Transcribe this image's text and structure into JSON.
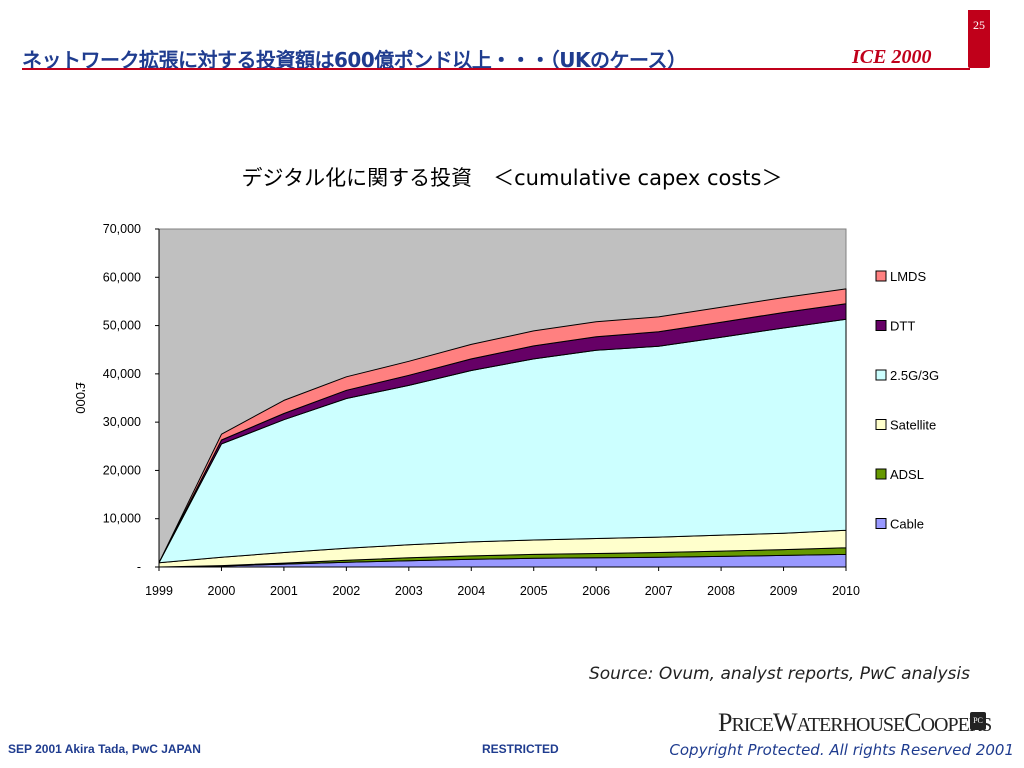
{
  "header": {
    "title": "ネットワーク拡張に対する投資額は600億ポンド以上・・・（UKのケース）",
    "brand": "ICE 2000",
    "page_number": "25"
  },
  "chart_data": {
    "type": "area",
    "stacked": true,
    "title": "デジタル化に関する投資　＜cumulative capex costs＞",
    "xlabel": "",
    "ylabel": "£'000",
    "ylim": [
      0,
      70000
    ],
    "yticks": [
      0,
      10000,
      20000,
      30000,
      40000,
      50000,
      60000,
      70000
    ],
    "ytick_labels": [
      "-",
      "10,000",
      "20,000",
      "30,000",
      "40,000",
      "50,000",
      "60,000",
      "70,000"
    ],
    "categories": [
      "1999",
      "2000",
      "2001",
      "2002",
      "2003",
      "2004",
      "2005",
      "2006",
      "2007",
      "2008",
      "2009",
      "2010"
    ],
    "legend_position": "right",
    "plot_background": "#c0c0c0",
    "series": [
      {
        "name": "Cable",
        "color": "#9999ff",
        "values": [
          0,
          200,
          600,
          1000,
          1300,
          1600,
          1800,
          1900,
          2000,
          2200,
          2400,
          2600
        ]
      },
      {
        "name": "ADSL",
        "color": "#669900",
        "values": [
          0,
          100,
          200,
          400,
          600,
          700,
          800,
          900,
          1000,
          1100,
          1200,
          1400
        ]
      },
      {
        "name": "Satellite",
        "color": "#ffffcc",
        "values": [
          900,
          1700,
          2200,
          2500,
          2700,
          2900,
          3000,
          3100,
          3200,
          3300,
          3400,
          3600
        ]
      },
      {
        "name": "2.5G/3G",
        "color": "#ccffff",
        "values": [
          0,
          23500,
          27500,
          31000,
          33000,
          35500,
          37500,
          39000,
          39500,
          41000,
          42500,
          43700
        ]
      },
      {
        "name": "DTT",
        "color": "#660066",
        "values": [
          0,
          800,
          1300,
          1700,
          2100,
          2400,
          2700,
          2800,
          3000,
          3100,
          3200,
          3200
        ]
      },
      {
        "name": "LMDS",
        "color": "#ff8080",
        "values": [
          0,
          1200,
          2700,
          2800,
          2900,
          3000,
          3100,
          3100,
          3100,
          3100,
          3100,
          3100
        ]
      }
    ]
  },
  "source": "Source: Ovum, analyst reports, PwC analysis",
  "logo_text": "PRICEWATERHOUSECOOPERS",
  "footer": {
    "left": "SEP 2001  Akira Tada, PwC JAPAN",
    "center": "RESTRICTED",
    "right": "Copyright Protected. All rights Reserved 2001"
  }
}
